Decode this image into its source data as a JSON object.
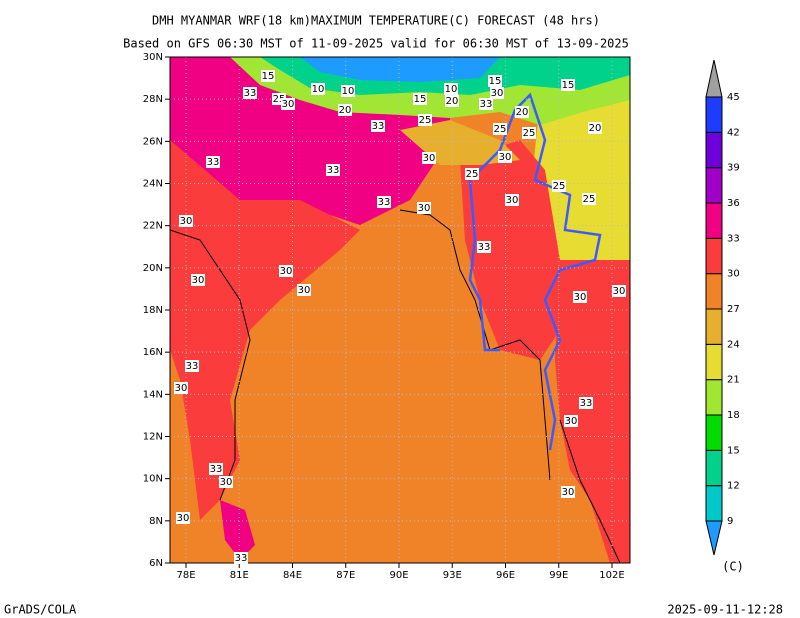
{
  "header": {
    "title": "DMH MYANMAR WRF(18 km)MAXIMUM TEMPERATURE(C) FORECAST (48 hrs)",
    "subtitle": "Based on GFS 06:30 MST of 11-09-2025 valid for 06:30 MST of 13-09-2025"
  },
  "map": {
    "lat_labels": [
      "30N",
      "28N",
      "26N",
      "24N",
      "22N",
      "20N",
      "18N",
      "16N",
      "14N",
      "12N",
      "10N",
      "8N",
      "6N"
    ],
    "lon_labels": [
      "78E",
      "81E",
      "84E",
      "87E",
      "90E",
      "93E",
      "96E",
      "99E",
      "102E"
    ],
    "contour_labels": [
      "15",
      "33",
      "25",
      "30",
      "10",
      "10",
      "20",
      "33",
      "15",
      "10",
      "20",
      "15",
      "30",
      "33",
      "15",
      "20",
      "25",
      "25",
      "25",
      "20",
      "30",
      "30",
      "33",
      "33",
      "25",
      "25",
      "25",
      "30",
      "33",
      "30",
      "30",
      "33",
      "30",
      "30",
      "30",
      "30",
      "30",
      "33",
      "30",
      "33",
      "30",
      "33",
      "30",
      "30",
      "30",
      "33"
    ]
  },
  "colorbar": {
    "levels": [
      9,
      12,
      15,
      18,
      21,
      24,
      27,
      30,
      33,
      36,
      39,
      42,
      45
    ],
    "colors": [
      "#1e9bff",
      "#00c8c8",
      "#00d28c",
      "#00dc00",
      "#a0e632",
      "#e6dc32",
      "#e6af2d",
      "#f08228",
      "#fa3c3c",
      "#f00082",
      "#a000c8",
      "#6e00dc",
      "#1e3cff",
      "#a0a0a0"
    ],
    "unit": "(C)"
  },
  "footer": {
    "left": "GrADS/COLA",
    "right": "2025-09-11-12:28"
  }
}
